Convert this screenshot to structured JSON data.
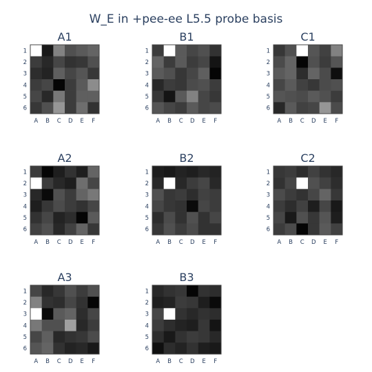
{
  "chart_data": {
    "type": "heatmap",
    "title": "W_E in +pee-ee L5.5 probe basis",
    "colorscale": [
      "#000000",
      "#ffffff"
    ],
    "x_categories": [
      "A",
      "B",
      "C",
      "D",
      "E",
      "F"
    ],
    "y_categories": [
      "1",
      "2",
      "3",
      "4",
      "5",
      "6"
    ],
    "panels": [
      {
        "name": "A1",
        "z": [
          [
            255,
            25,
            130,
            80,
            90,
            100
          ],
          [
            60,
            40,
            70,
            50,
            55,
            80
          ],
          [
            45,
            35,
            95,
            70,
            85,
            55
          ],
          [
            60,
            70,
            5,
            60,
            90,
            140
          ],
          [
            70,
            40,
            120,
            60,
            95,
            95
          ],
          [
            55,
            80,
            150,
            60,
            110,
            50
          ]
        ]
      },
      {
        "name": "B1",
        "z": [
          [
            60,
            255,
            90,
            70,
            80,
            50
          ],
          [
            100,
            60,
            90,
            60,
            70,
            20
          ],
          [
            90,
            80,
            55,
            70,
            95,
            5
          ],
          [
            40,
            60,
            55,
            75,
            80,
            60
          ],
          [
            55,
            20,
            90,
            130,
            70,
            55
          ],
          [
            85,
            70,
            60,
            90,
            70,
            75
          ]
        ]
      },
      {
        "name": "C1",
        "z": [
          [
            55,
            80,
            255,
            85,
            65,
            130
          ],
          [
            75,
            100,
            5,
            80,
            60,
            85
          ],
          [
            90,
            100,
            45,
            100,
            75,
            15
          ],
          [
            70,
            90,
            65,
            55,
            75,
            80
          ],
          [
            85,
            80,
            75,
            90,
            80,
            60
          ],
          [
            40,
            90,
            65,
            70,
            150,
            75
          ]
        ]
      },
      {
        "name": "A2",
        "z": [
          [
            60,
            5,
            30,
            50,
            30,
            100
          ],
          [
            255,
            60,
            40,
            30,
            110,
            70
          ],
          [
            40,
            10,
            80,
            60,
            100,
            120
          ],
          [
            30,
            55,
            75,
            60,
            50,
            70
          ],
          [
            50,
            70,
            35,
            45,
            5,
            90
          ],
          [
            65,
            80,
            40,
            65,
            100,
            55
          ]
        ]
      },
      {
        "name": "B2",
        "z": [
          [
            30,
            25,
            35,
            30,
            40,
            35
          ],
          [
            40,
            255,
            40,
            60,
            70,
            40
          ],
          [
            80,
            55,
            60,
            45,
            65,
            60
          ],
          [
            70,
            55,
            50,
            10,
            70,
            60
          ],
          [
            45,
            75,
            50,
            80,
            50,
            70
          ],
          [
            55,
            80,
            60,
            75,
            50,
            50
          ]
        ]
      },
      {
        "name": "C2",
        "z": [
          [
            55,
            60,
            45,
            65,
            50,
            40
          ],
          [
            50,
            70,
            255,
            80,
            65,
            45
          ],
          [
            75,
            60,
            50,
            70,
            100,
            55
          ],
          [
            60,
            45,
            65,
            30,
            70,
            25
          ],
          [
            70,
            25,
            80,
            55,
            85,
            30
          ],
          [
            60,
            75,
            5,
            55,
            90,
            65
          ]
        ]
      },
      {
        "name": "A3",
        "z": [
          [
            70,
            40,
            55,
            80,
            60,
            80
          ],
          [
            130,
            50,
            45,
            70,
            50,
            5
          ],
          [
            255,
            10,
            90,
            100,
            45,
            70
          ],
          [
            120,
            80,
            80,
            160,
            40,
            60
          ],
          [
            70,
            95,
            40,
            50,
            55,
            75
          ],
          [
            85,
            100,
            50,
            35,
            40,
            25
          ]
        ]
      },
      {
        "name": "B3",
        "z": [
          [
            40,
            50,
            55,
            5,
            50,
            45
          ],
          [
            30,
            35,
            60,
            55,
            30,
            10
          ],
          [
            70,
            255,
            50,
            40,
            50,
            45
          ],
          [
            60,
            45,
            35,
            30,
            55,
            20
          ],
          [
            45,
            25,
            50,
            60,
            55,
            40
          ],
          [
            15,
            45,
            35,
            50,
            30,
            25
          ]
        ]
      }
    ]
  }
}
